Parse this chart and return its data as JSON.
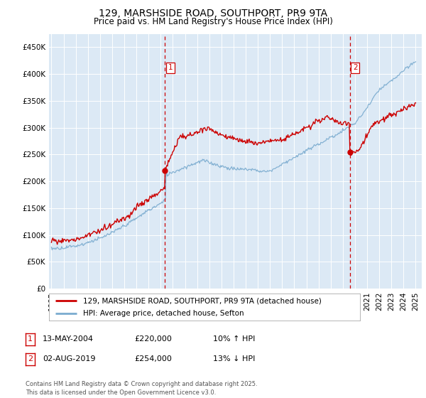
{
  "title": "129, MARSHSIDE ROAD, SOUTHPORT, PR9 9TA",
  "subtitle": "Price paid vs. HM Land Registry's House Price Index (HPI)",
  "ylim": [
    0,
    475000
  ],
  "yticks": [
    0,
    50000,
    100000,
    150000,
    200000,
    250000,
    300000,
    350000,
    400000,
    450000
  ],
  "ytick_labels": [
    "£0",
    "£50K",
    "£100K",
    "£150K",
    "£200K",
    "£250K",
    "£300K",
    "£350K",
    "£400K",
    "£450K"
  ],
  "xlim_start": 1994.8,
  "xlim_end": 2025.5,
  "plot_bg_color": "#dce9f5",
  "fig_bg_color": "#ffffff",
  "red_line_color": "#cc0000",
  "blue_line_color": "#7aabcf",
  "vline_color": "#cc0000",
  "marker1_year": 2004.36,
  "marker2_year": 2019.58,
  "dot1_price": 220000,
  "dot2_price": 254000,
  "legend_line1": "129, MARSHSIDE ROAD, SOUTHPORT, PR9 9TA (detached house)",
  "legend_line2": "HPI: Average price, detached house, Sefton",
  "annotation1_date": "13-MAY-2004",
  "annotation1_price": "£220,000",
  "annotation1_hpi": "10% ↑ HPI",
  "annotation2_date": "02-AUG-2019",
  "annotation2_price": "£254,000",
  "annotation2_hpi": "13% ↓ HPI",
  "footer": "Contains HM Land Registry data © Crown copyright and database right 2025.\nThis data is licensed under the Open Government Licence v3.0.",
  "title_fontsize": 10,
  "subtitle_fontsize": 8.5,
  "tick_fontsize": 7.5,
  "legend_fontsize": 7.5,
  "annotation_fontsize": 8,
  "footer_fontsize": 6
}
